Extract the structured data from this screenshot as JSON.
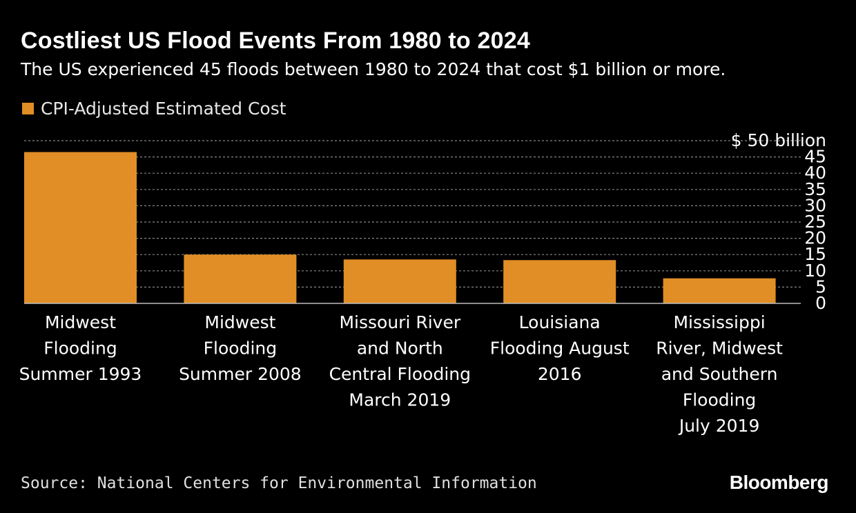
{
  "title": "Costliest US Flood Events From 1980 to 2024",
  "subtitle": "The US experienced 45 floods between 1980 to 2024 that cost $1 billion or more.",
  "source": "Source: National Centers for Environmental Information",
  "logo": "Bloomberg",
  "colors": {
    "background": "#000000",
    "bar": "#e08e25",
    "text": "#ffffff",
    "grid": "#8a8a8a"
  },
  "chart_data": {
    "type": "bar",
    "categories": [
      "Midwest Flooding Summer 1993",
      "Midwest Flooding Summer 2008",
      "Missouri River and North Central Flooding March 2019",
      "Louisiana Flooding August 2016",
      "Mississippi River, Midwest and Southern Flooding July 2019"
    ],
    "category_lines": [
      [
        "Midwest",
        "Flooding",
        "Summer 1993"
      ],
      [
        "Midwest",
        "Flooding",
        "Summer 2008"
      ],
      [
        "Missouri River",
        "and North",
        "Central Flooding",
        "March 2019"
      ],
      [
        "Louisiana",
        "Flooding August",
        "2016"
      ],
      [
        "Mississippi",
        "River, Midwest",
        "and Southern",
        "Flooding",
        "July 2019"
      ]
    ],
    "series": [
      {
        "name": "CPI-Adjusted Estimated Cost",
        "values": [
          46.5,
          15,
          13.5,
          13.3,
          7.7
        ]
      }
    ],
    "ylim": [
      0,
      50
    ],
    "yticks": [
      0,
      5,
      10,
      15,
      20,
      25,
      30,
      35,
      40,
      45,
      50
    ],
    "ytick_labels": [
      "0",
      "5",
      "10",
      "15",
      "20",
      "25",
      "30",
      "35",
      "40",
      "45",
      "$ 50 billion"
    ],
    "y_axis_side": "right",
    "grid": true,
    "legend": "top-left"
  }
}
